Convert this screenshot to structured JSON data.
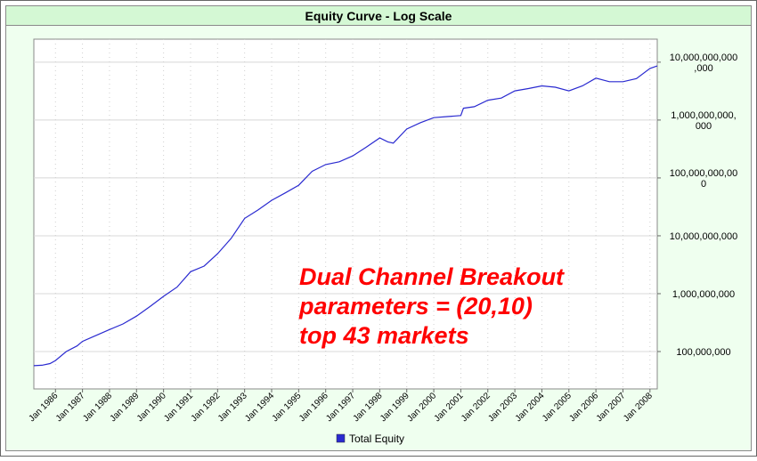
{
  "chart_data": {
    "type": "line",
    "title": "Equity Curve - Log Scale",
    "annotation": [
      "Dual Channel Breakout",
      "parameters = (20,10)",
      "top 43 markets"
    ],
    "log_y": true,
    "grid": true,
    "legend": "bottom",
    "xlim": [
      1985.2,
      2008.27
    ],
    "xticks": [
      {
        "value": 1986,
        "label": "Jan 1986"
      },
      {
        "value": 1987,
        "label": "Jan 1987"
      },
      {
        "value": 1988,
        "label": "Jan 1988"
      },
      {
        "value": 1989,
        "label": "Jan 1989"
      },
      {
        "value": 1990,
        "label": "Jan 1990"
      },
      {
        "value": 1991,
        "label": "Jan 1991"
      },
      {
        "value": 1992,
        "label": "Jan 1992"
      },
      {
        "value": 1993,
        "label": "Jan 1993"
      },
      {
        "value": 1994,
        "label": "Jan 1994"
      },
      {
        "value": 1995,
        "label": "Jan 1995"
      },
      {
        "value": 1996,
        "label": "Jan 1996"
      },
      {
        "value": 1997,
        "label": "Jan 1997"
      },
      {
        "value": 1998,
        "label": "Jan 1998"
      },
      {
        "value": 1999,
        "label": "Jan 1999"
      },
      {
        "value": 2000,
        "label": "Jan 2000"
      },
      {
        "value": 2001,
        "label": "Jan 2001"
      },
      {
        "value": 2002,
        "label": "Jan 2002"
      },
      {
        "value": 2003,
        "label": "Jan 2003"
      },
      {
        "value": 2004,
        "label": "Jan 2004"
      },
      {
        "value": 2005,
        "label": "Jan 2005"
      },
      {
        "value": 2006,
        "label": "Jan 2006"
      },
      {
        "value": 2007,
        "label": "Jan 2007"
      },
      {
        "value": 2008,
        "label": "Jan 2008"
      }
    ],
    "ylim": [
      22600000,
      25000000000000
    ],
    "yticks": [
      {
        "value": 100000000,
        "label": "100,000,000"
      },
      {
        "value": 1000000000,
        "label": "1,000,000,000"
      },
      {
        "value": 10000000000,
        "label": "10,000,000,000"
      },
      {
        "value": 100000000000,
        "label": "100,000,000,000"
      },
      {
        "value": 1000000000000,
        "label": "1,000,000,000,000"
      },
      {
        "value": 10000000000000,
        "label": "10,000,000,000,000"
      }
    ],
    "x": [
      1985.2,
      1985.5,
      1985.8,
      1986.0,
      1986.4,
      1986.8,
      1987.0,
      1987.5,
      1988.0,
      1988.5,
      1989.0,
      1989.5,
      1990.0,
      1990.5,
      1991.0,
      1991.5,
      1992.0,
      1992.5,
      1993.0,
      1993.5,
      1994.0,
      1994.5,
      1995.0,
      1995.5,
      1996.0,
      1996.5,
      1997.0,
      1997.5,
      1998.0,
      1998.3,
      1998.5,
      1999.0,
      1999.5,
      2000.0,
      2000.5,
      2001.0,
      2001.1,
      2001.5,
      2002.0,
      2002.5,
      2003.0,
      2003.5,
      2004.0,
      2004.5,
      2005.0,
      2005.5,
      2006.0,
      2006.5,
      2007.0,
      2007.5,
      2008.0,
      2008.27
    ],
    "series": [
      {
        "name": "Total Equity",
        "color": "#2a2ad0",
        "values": [
          57000000,
          58000000,
          62000000,
          70000000,
          100000000,
          125000000,
          150000000,
          190000000,
          240000000,
          300000000,
          410000000,
          600000000,
          900000000,
          1300000000,
          2400000000,
          3000000000,
          4900000000,
          9000000000,
          20000000000,
          28000000000,
          41000000000,
          55000000000,
          75000000000,
          130000000000,
          170000000000,
          190000000000,
          240000000000,
          340000000000,
          490000000000,
          420000000000,
          400000000000,
          700000000000,
          900000000000,
          1100000000000,
          1150000000000,
          1200000000000,
          1600000000000,
          1700000000000,
          2200000000000,
          2400000000000,
          3200000000000,
          3500000000000,
          3900000000000,
          3700000000000,
          3200000000000,
          3900000000000,
          5300000000000,
          4600000000000,
          4600000000000,
          5200000000000,
          7800000000000,
          8600000000000
        ]
      }
    ]
  }
}
